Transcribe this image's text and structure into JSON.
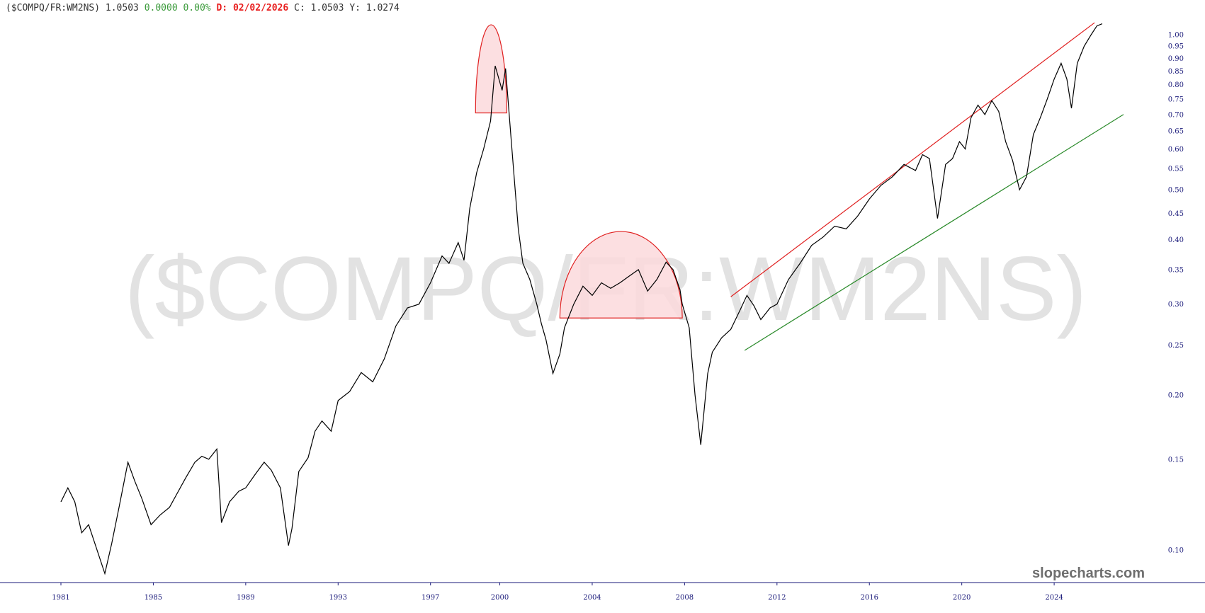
{
  "header": {
    "symbol": "($COMPQ/FR:WM2NS)",
    "last": "1.0503",
    "change": "0.0000",
    "change_pct": "0.00%",
    "date_label": "D:",
    "date": "02/02/2026",
    "close_label": "C:",
    "close": "1.0503",
    "prev_label": "Y:",
    "prev": "1.0274"
  },
  "watermark": "($COMPQ/FR:WM2NS)",
  "brand": "slopecharts.com",
  "colors": {
    "line": "#000000",
    "resistance": "#e02020",
    "support": "#2a8a2a",
    "dome_fill": "#fbd9dc",
    "dome_stroke": "#e02020",
    "axis_text": "#1a1a7a"
  },
  "chart_data": {
    "type": "line",
    "y_scale": "log",
    "xlim": [
      1980.8,
      2027.0
    ],
    "ylim": [
      0.087,
      1.12
    ],
    "y_ticks": [
      "0.10",
      "0.15",
      "0.20",
      "0.25",
      "0.30",
      "0.35",
      "0.40",
      "0.45",
      "0.50",
      "0.55",
      "0.60",
      "0.65",
      "0.70",
      "0.75",
      "0.80",
      "0.85",
      "0.90",
      "0.95",
      "1.00"
    ],
    "x_ticks": [
      "1981",
      "1985",
      "1989",
      "1993",
      "1997",
      "2000",
      "2004",
      "2008",
      "2012",
      "2016",
      "2020",
      "2024"
    ],
    "grid": false,
    "series": [
      {
        "x": [
          1981.0,
          1981.3,
          1981.6,
          1981.9,
          1982.2,
          1982.5,
          1982.9,
          1983.2,
          1983.5,
          1983.9,
          1984.2,
          1984.5,
          1984.9,
          1985.3,
          1985.7,
          1986.0,
          1986.4,
          1986.8,
          1987.1,
          1987.4,
          1987.75,
          1987.95,
          1988.3,
          1988.7,
          1989.0,
          1989.4,
          1989.8,
          1990.1,
          1990.5,
          1990.85,
          1991.0,
          1991.3,
          1991.7,
          1992.0,
          1992.3,
          1992.7,
          1993.0,
          1993.5,
          1994.0,
          1994.5,
          1995.0,
          1995.5,
          1996.0,
          1996.5,
          1997.0,
          1997.5,
          1997.8,
          1998.2,
          1998.45,
          1998.7,
          1999.0,
          1999.3,
          1999.6,
          1999.8,
          2000.1,
          2000.25,
          2000.5,
          2000.8,
          2001.0,
          2001.3,
          2001.6,
          2001.8,
          2002.0,
          2002.3,
          2002.6,
          2002.8,
          2003.2,
          2003.6,
          2004.0,
          2004.4,
          2004.8,
          2005.2,
          2005.6,
          2006.0,
          2006.4,
          2006.8,
          2007.2,
          2007.5,
          2007.8,
          2007.9,
          2008.2,
          2008.45,
          2008.7,
          2009.0,
          2009.2,
          2009.6,
          2010.0,
          2010.4,
          2010.7,
          2011.0,
          2011.3,
          2011.7,
          2012.0,
          2012.5,
          2013.0,
          2013.5,
          2014.0,
          2014.5,
          2015.0,
          2015.5,
          2016.0,
          2016.5,
          2017.0,
          2017.5,
          2018.0,
          2018.3,
          2018.6,
          2018.95,
          2019.3,
          2019.6,
          2019.9,
          2020.15,
          2020.4,
          2020.7,
          2021.0,
          2021.3,
          2021.6,
          2021.9,
          2022.2,
          2022.5,
          2022.8,
          2023.1,
          2023.4,
          2023.7,
          2024.0,
          2024.3,
          2024.55,
          2024.75,
          2025.0,
          2025.3,
          2025.6,
          2025.85,
          2026.08
        ],
        "y": [
          0.124,
          0.132,
          0.124,
          0.108,
          0.112,
          0.102,
          0.09,
          0.103,
          0.12,
          0.148,
          0.136,
          0.126,
          0.112,
          0.117,
          0.121,
          0.128,
          0.138,
          0.148,
          0.152,
          0.15,
          0.157,
          0.113,
          0.124,
          0.13,
          0.132,
          0.14,
          0.148,
          0.143,
          0.132,
          0.102,
          0.11,
          0.142,
          0.151,
          0.17,
          0.178,
          0.17,
          0.195,
          0.203,
          0.221,
          0.212,
          0.235,
          0.272,
          0.295,
          0.3,
          0.33,
          0.372,
          0.36,
          0.395,
          0.365,
          0.46,
          0.54,
          0.6,
          0.68,
          0.87,
          0.78,
          0.86,
          0.62,
          0.42,
          0.36,
          0.335,
          0.3,
          0.275,
          0.256,
          0.22,
          0.24,
          0.27,
          0.3,
          0.325,
          0.312,
          0.33,
          0.322,
          0.33,
          0.34,
          0.35,
          0.318,
          0.335,
          0.362,
          0.35,
          0.32,
          0.3,
          0.27,
          0.2,
          0.16,
          0.22,
          0.242,
          0.258,
          0.268,
          0.292,
          0.312,
          0.298,
          0.28,
          0.295,
          0.3,
          0.335,
          0.36,
          0.39,
          0.405,
          0.425,
          0.42,
          0.445,
          0.48,
          0.51,
          0.53,
          0.56,
          0.545,
          0.585,
          0.575,
          0.44,
          0.56,
          0.575,
          0.62,
          0.6,
          0.69,
          0.73,
          0.7,
          0.745,
          0.71,
          0.62,
          0.57,
          0.5,
          0.53,
          0.64,
          0.69,
          0.75,
          0.82,
          0.88,
          0.82,
          0.72,
          0.88,
          0.95,
          1.0,
          1.04,
          1.05
        ]
      }
    ],
    "trendlines": [
      {
        "x": [
          2010.0,
          2025.75
        ],
        "y": [
          0.31,
          1.055
        ]
      },
      {
        "x": [
          2010.6,
          2027.0
        ],
        "y": [
          0.244,
          0.7
        ]
      }
    ],
    "domes": [
      {
        "x": [
          1998.95,
          2000.3
        ],
        "y_base": 0.705,
        "y_top": 1.045
      },
      {
        "x": [
          2002.6,
          2007.9
        ],
        "y_base": 0.282,
        "y_top": 0.415
      }
    ]
  }
}
